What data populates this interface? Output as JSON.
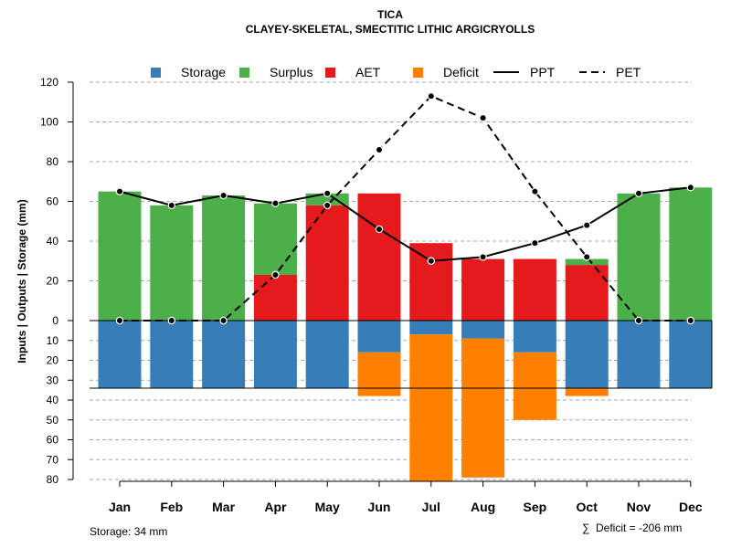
{
  "chart_data": {
    "type": "bar",
    "title": "TICA",
    "subtitle": "CLAYEY-SKELETAL, SMECTITIC LITHIC ARGICRYOLLS",
    "ylabel": "Inputs | Outputs | Storage    (mm)",
    "categories": [
      "Jan",
      "Feb",
      "Mar",
      "Apr",
      "May",
      "Jun",
      "Jul",
      "Aug",
      "Sep",
      "Oct",
      "Nov",
      "Dec"
    ],
    "ylim_upper": [
      0,
      120
    ],
    "ylim_lower": [
      0,
      80
    ],
    "yticks_upper": [
      "0",
      "20",
      "40",
      "60",
      "80",
      "100",
      "120"
    ],
    "yticks_lower": [
      "10",
      "20",
      "30",
      "40",
      "50",
      "60",
      "70",
      "80"
    ],
    "grid": true,
    "storage_capacity_mm": 34,
    "series": [
      {
        "name": "Storage",
        "color": "#377EB8",
        "side": "below",
        "values": [
          34,
          34,
          34,
          34,
          34,
          16,
          7,
          9,
          16,
          34,
          34,
          34
        ]
      },
      {
        "name": "Surplus",
        "color": "#4DAF4A",
        "side": "above",
        "values": [
          65,
          58,
          63,
          36,
          6,
          0,
          0,
          0,
          0,
          3,
          64,
          67
        ]
      },
      {
        "name": "AET",
        "color": "#E41A1C",
        "side": "above",
        "values": [
          0,
          0,
          0,
          23,
          58,
          64,
          39,
          31,
          31,
          28,
          0,
          0
        ]
      },
      {
        "name": "Deficit",
        "color": "#FF7F00",
        "side": "below",
        "values": [
          0,
          0,
          0,
          0,
          0,
          22,
          74,
          70,
          34,
          4,
          0,
          0
        ]
      },
      {
        "name": "PPT",
        "color": "#000000",
        "style": "solid line",
        "values": [
          65,
          58,
          63,
          59,
          64,
          46,
          30,
          32,
          39,
          48,
          64,
          67
        ]
      },
      {
        "name": "PET",
        "color": "#000000",
        "style": "dashed line",
        "values": [
          0,
          0,
          0,
          23,
          58,
          86,
          113,
          102,
          65,
          32,
          0,
          0
        ]
      }
    ],
    "legend": {
      "position": "top",
      "entries": [
        "Storage",
        "Surplus",
        "AET",
        "Deficit",
        "PPT",
        "PET"
      ]
    },
    "footnote_left": "Storage: 34 mm",
    "footnote_right_symbol": "∑",
    "footnote_right": "Deficit = -206 mm"
  }
}
